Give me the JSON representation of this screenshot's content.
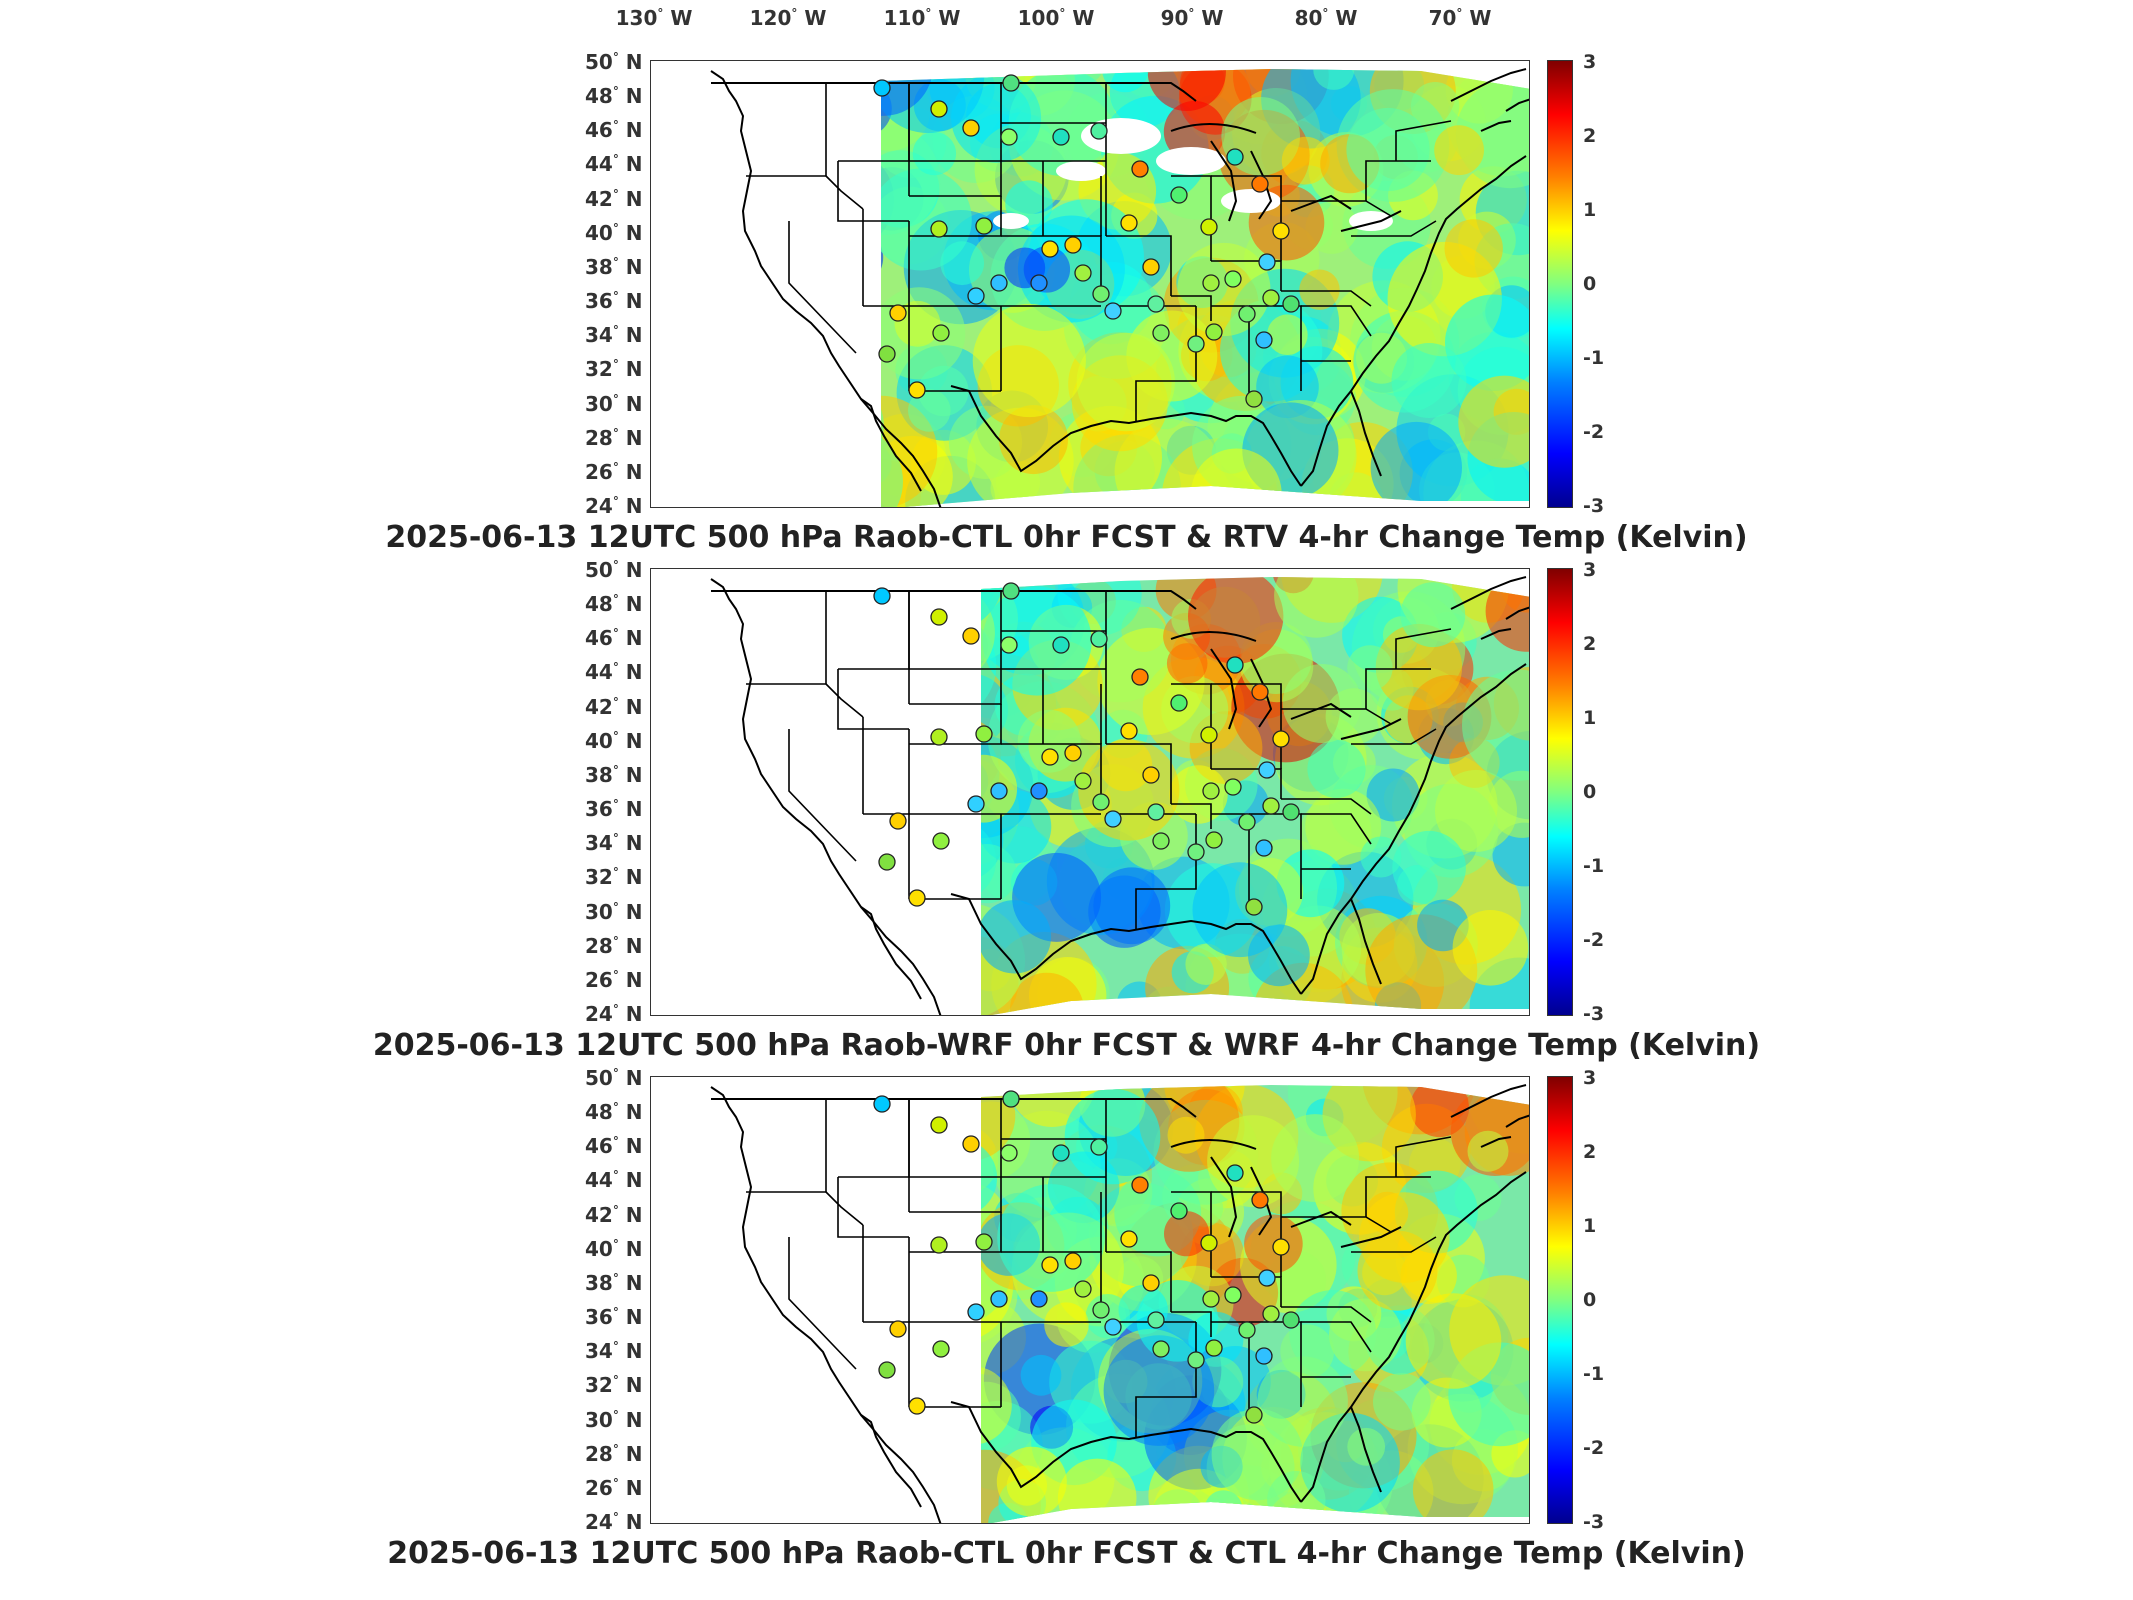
{
  "longitude_labels": [
    "130",
    "120",
    "110",
    "100",
    "90",
    "80",
    "70"
  ],
  "longitude_suffix": "W",
  "latitude_labels": [
    "50",
    "48",
    "46",
    "44",
    "42",
    "40",
    "38",
    "36",
    "34",
    "32",
    "30",
    "28",
    "26",
    "24"
  ],
  "latitude_suffix": "N",
  "colorbar": {
    "ticks": [
      "3",
      "2",
      "1",
      "0",
      "-1",
      "-2",
      "-3"
    ],
    "range": [
      -3,
      3
    ],
    "colormap": "jet",
    "colors": [
      "#00008f",
      "#0000ff",
      "#0080ff",
      "#00ffff",
      "#80ff80",
      "#ffff00",
      "#ff8000",
      "#ff0000",
      "#800000"
    ]
  },
  "panels": [
    {
      "title": "2025-06-13 12UTC 500 hPa Raob-CTL 0hr FCST & RTV 4-hr Change Temp (Kelvin)"
    },
    {
      "title": "2025-06-13 12UTC 500 hPa Raob-WRF 0hr FCST & WRF 4-hr Change Temp (Kelvin)"
    },
    {
      "title": "2025-06-13 12UTC 500 hPa Raob-CTL 0hr FCST & CTL 4-hr Change Temp (Kelvin)"
    }
  ]
}
